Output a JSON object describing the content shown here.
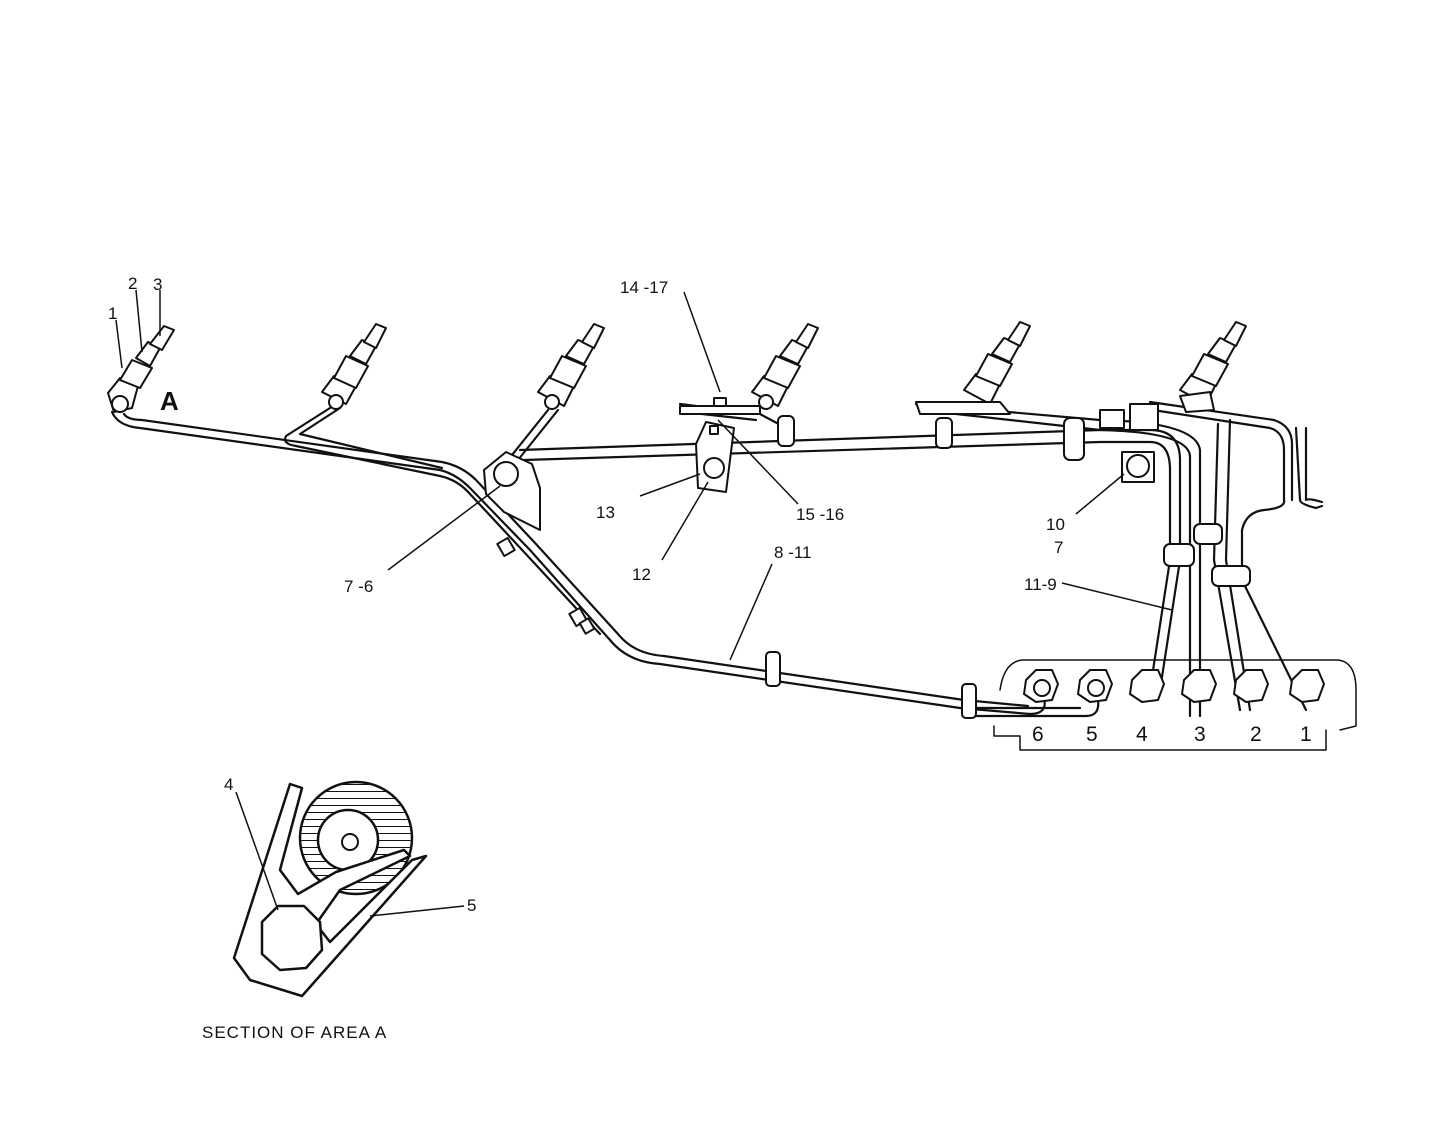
{
  "callouts": {
    "c1": "1",
    "c2": "2",
    "c3": "3",
    "c4": "4",
    "c5": "5",
    "c7_6": "7 -6",
    "c8_11": "8 -11",
    "c10": "10",
    "c7": "7",
    "c11_9": "11-9",
    "c12": "12",
    "c13": "13",
    "c14_17": "14 -17",
    "c15_16": "15 -16"
  },
  "area_label": "A",
  "pump_cylinder_numbers": [
    "6",
    "5",
    "4",
    "3",
    "2",
    "1"
  ],
  "section_caption": "SECTION OF AREA A"
}
